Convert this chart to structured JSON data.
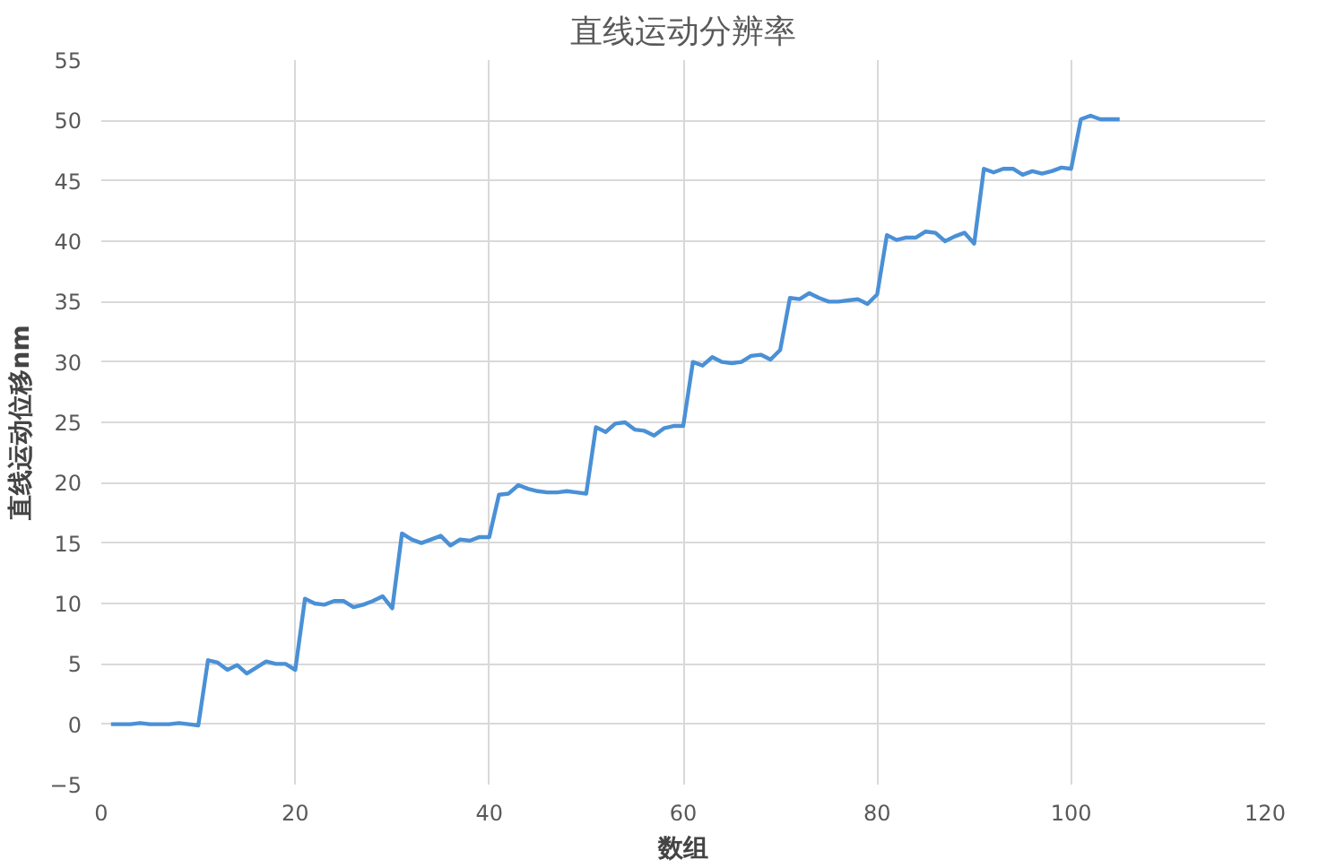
{
  "chart_data": {
    "type": "line",
    "title": "直线运动分辨率",
    "xlabel": "数组",
    "ylabel": "直线运动位移nm",
    "x": [
      1,
      2,
      3,
      4,
      5,
      6,
      7,
      8,
      9,
      10,
      11,
      12,
      13,
      14,
      15,
      16,
      17,
      18,
      19,
      20,
      21,
      22,
      23,
      24,
      25,
      26,
      27,
      28,
      29,
      30,
      31,
      32,
      33,
      34,
      35,
      36,
      37,
      38,
      39,
      40,
      41,
      42,
      43,
      44,
      45,
      46,
      47,
      48,
      49,
      50,
      51,
      52,
      53,
      54,
      55,
      56,
      57,
      58,
      59,
      60,
      61,
      62,
      63,
      64,
      65,
      66,
      67,
      68,
      69,
      70,
      71,
      72,
      73,
      74,
      75,
      76,
      77,
      78,
      79,
      80,
      81,
      82,
      83,
      84,
      85,
      86,
      87,
      88,
      89,
      90,
      91,
      92,
      93,
      94,
      95,
      96,
      97,
      98,
      99,
      100,
      101,
      102,
      103,
      104,
      105
    ],
    "series": [
      {
        "color": "#4a90d6",
        "values": [
          0,
          0,
          0,
          0.1,
          0,
          0,
          0,
          0.1,
          0,
          -0.1,
          5.3,
          5.1,
          4.5,
          4.9,
          4.2,
          4.7,
          5.2,
          5.0,
          5.0,
          4.5,
          10.4,
          10.0,
          9.9,
          10.2,
          10.2,
          9.7,
          9.9,
          10.2,
          10.6,
          9.6,
          15.8,
          15.3,
          15.0,
          15.3,
          15.6,
          14.8,
          15.3,
          15.2,
          15.5,
          15.5,
          19.0,
          19.1,
          19.8,
          19.5,
          19.3,
          19.2,
          19.2,
          19.3,
          19.2,
          19.1,
          24.6,
          24.2,
          24.9,
          25.0,
          24.4,
          24.3,
          23.9,
          24.5,
          24.7,
          24.7,
          30.0,
          29.7,
          30.4,
          30.0,
          29.9,
          30.0,
          30.5,
          30.6,
          30.2,
          31.0,
          35.3,
          35.2,
          35.7,
          35.3,
          35.0,
          35.0,
          35.1,
          35.2,
          34.8,
          35.6,
          40.5,
          40.1,
          40.3,
          40.3,
          40.8,
          40.7,
          40.0,
          40.4,
          40.7,
          39.8,
          46.0,
          45.7,
          46.0,
          46.0,
          45.5,
          45.8,
          45.6,
          45.8,
          46.1,
          46.0,
          50.1,
          50.4,
          50.1,
          50.1,
          50.1
        ]
      }
    ],
    "xlim": [
      0,
      120
    ],
    "xticks": [
      0,
      20,
      40,
      60,
      80,
      100,
      120
    ],
    "ylim": [
      -5,
      55
    ],
    "yticks": [
      -5,
      0,
      5,
      10,
      15,
      20,
      25,
      30,
      35,
      40,
      45,
      50,
      55
    ],
    "grid": true,
    "marker": "none",
    "line_style": "solid"
  }
}
